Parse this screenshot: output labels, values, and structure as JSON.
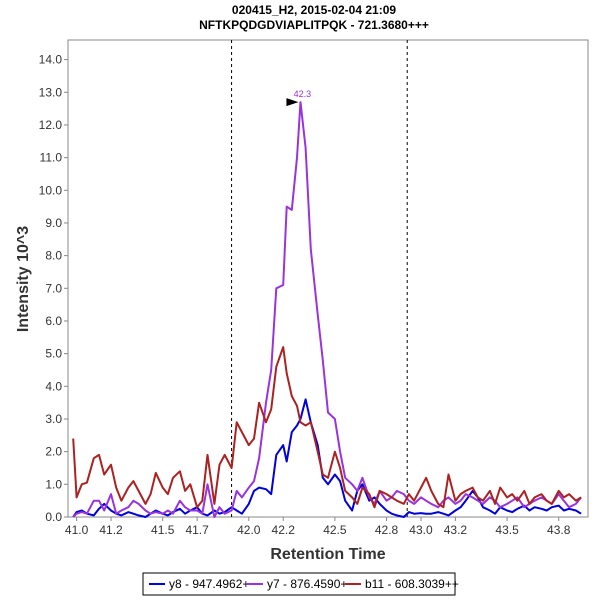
{
  "chart_data": {
    "type": "line",
    "title": "020415_H2, 2015-02-04 21:09",
    "subtitle": "NFTKPQDGDVIAPLITPQK - 721.3680+++",
    "xlabel": "Retention Time",
    "ylabel": "Intensity 10^3",
    "xlim": [
      40.95,
      43.97
    ],
    "ylim": [
      0,
      14.6
    ],
    "x_ticks": [
      41.0,
      41.2,
      41.5,
      41.7,
      42.0,
      42.2,
      42.5,
      42.8,
      43.0,
      43.2,
      43.5,
      43.8
    ],
    "x_tick_labels": [
      "41.0",
      "41.2",
      "41.5",
      "41.7",
      "42.0",
      "42.2",
      "42.5",
      "42.8",
      "43.0",
      "43.2",
      "43.5",
      "43.8"
    ],
    "y_ticks": [
      0,
      1,
      2,
      3,
      4,
      5,
      6,
      7,
      8,
      9,
      10,
      11,
      12,
      13,
      14
    ],
    "y_tick_labels": [
      "0.0",
      "1.0",
      "2.0",
      "3.0",
      "4.0",
      "5.0",
      "6.0",
      "7.0",
      "8.0",
      "9.0",
      "10.0",
      "11.0",
      "12.0",
      "13.0",
      "14.0"
    ],
    "integration_bounds": [
      41.9,
      42.92
    ],
    "peak_annotation": {
      "x": 42.3,
      "y": 12.7,
      "label": "42.3",
      "color": "#9933cc"
    },
    "legend_position": "bottom",
    "series": [
      {
        "name": "y8 - 947.4962+",
        "color": "#0000dd",
        "x": [
          40.98,
          41.0,
          41.03,
          41.06,
          41.1,
          41.13,
          41.16,
          41.2,
          41.23,
          41.26,
          41.3,
          41.33,
          41.36,
          41.4,
          41.43,
          41.46,
          41.5,
          41.53,
          41.56,
          41.6,
          41.63,
          41.66,
          41.7,
          41.73,
          41.76,
          41.8,
          41.83,
          41.86,
          41.9,
          41.93,
          41.96,
          42.0,
          42.03,
          42.06,
          42.1,
          42.13,
          42.16,
          42.2,
          42.22,
          42.25,
          42.28,
          42.3,
          42.33,
          42.36,
          42.4,
          42.43,
          42.46,
          42.5,
          42.53,
          42.56,
          42.6,
          42.63,
          42.66,
          42.7,
          42.73,
          42.76,
          42.8,
          42.83,
          42.86,
          42.9,
          42.93,
          42.96,
          43.0,
          43.03,
          43.06,
          43.1,
          43.13,
          43.16,
          43.2,
          43.23,
          43.26,
          43.3,
          43.33,
          43.36,
          43.4,
          43.43,
          43.46,
          43.5,
          43.53,
          43.56,
          43.6,
          43.63,
          43.66,
          43.7,
          43.73,
          43.76,
          43.8,
          43.83,
          43.86,
          43.9,
          43.93
        ],
        "values": [
          0.0,
          0.15,
          0.2,
          0.1,
          0.05,
          0.25,
          0.4,
          0.2,
          0.1,
          0.05,
          0.15,
          0.1,
          0.05,
          0.0,
          0.1,
          0.2,
          0.1,
          0.05,
          0.15,
          0.25,
          0.1,
          0.2,
          0.3,
          0.1,
          0.05,
          0.2,
          0.1,
          0.15,
          0.3,
          0.2,
          0.1,
          0.4,
          0.8,
          0.9,
          0.85,
          0.7,
          1.9,
          2.2,
          1.7,
          2.6,
          2.8,
          3.0,
          3.6,
          2.9,
          2.2,
          1.2,
          1.0,
          1.3,
          1.1,
          0.5,
          0.2,
          0.8,
          1.0,
          0.5,
          0.6,
          0.4,
          0.2,
          0.1,
          0.05,
          0.0,
          0.15,
          0.1,
          0.12,
          0.1,
          0.1,
          0.15,
          0.1,
          0.05,
          0.2,
          0.3,
          0.5,
          0.8,
          0.6,
          0.3,
          0.2,
          0.1,
          0.3,
          0.2,
          0.15,
          0.25,
          0.35,
          0.2,
          0.3,
          0.25,
          0.2,
          0.3,
          0.35,
          0.2,
          0.25,
          0.2,
          0.1
        ]
      },
      {
        "name": "y7 - 876.4590+",
        "color": "#9933dd",
        "x": [
          40.98,
          41.0,
          41.03,
          41.06,
          41.1,
          41.13,
          41.16,
          41.2,
          41.23,
          41.26,
          41.3,
          41.33,
          41.36,
          41.4,
          41.43,
          41.46,
          41.5,
          41.53,
          41.56,
          41.6,
          41.63,
          41.66,
          41.7,
          41.73,
          41.76,
          41.8,
          41.83,
          41.86,
          41.9,
          41.93,
          41.96,
          42.0,
          42.03,
          42.06,
          42.1,
          42.13,
          42.16,
          42.2,
          42.22,
          42.25,
          42.28,
          42.3,
          42.33,
          42.36,
          42.4,
          42.43,
          42.46,
          42.5,
          42.53,
          42.56,
          42.6,
          42.63,
          42.66,
          42.7,
          42.73,
          42.76,
          42.8,
          42.83,
          42.86,
          42.9,
          42.93,
          42.96,
          43.0,
          43.03,
          43.06,
          43.1,
          43.13,
          43.16,
          43.2,
          43.23,
          43.26,
          43.3,
          43.33,
          43.36,
          43.4,
          43.43,
          43.46,
          43.5,
          43.53,
          43.56,
          43.6,
          43.63,
          43.66,
          43.7,
          43.73,
          43.76,
          43.8,
          43.83,
          43.86,
          43.9,
          43.93
        ],
        "values": [
          0.0,
          0.1,
          0.15,
          0.1,
          0.5,
          0.5,
          0.2,
          0.7,
          0.1,
          0.2,
          0.3,
          0.5,
          0.4,
          0.2,
          0.1,
          0.15,
          0.1,
          0.2,
          0.1,
          0.5,
          0.3,
          0.2,
          0.2,
          0.1,
          1.0,
          0.0,
          0.3,
          0.1,
          0.2,
          0.8,
          0.6,
          0.9,
          1.1,
          1.8,
          3.5,
          4.5,
          7.0,
          7.1,
          9.5,
          9.4,
          11.0,
          12.7,
          11.3,
          8.2,
          6.2,
          4.8,
          3.2,
          3.0,
          2.0,
          1.2,
          1.0,
          0.8,
          1.2,
          0.6,
          0.4,
          0.8,
          0.5,
          0.6,
          0.8,
          0.7,
          0.5,
          0.4,
          0.6,
          0.5,
          0.4,
          0.3,
          0.5,
          0.6,
          0.4,
          0.5,
          0.7,
          0.6,
          0.5,
          0.4,
          0.6,
          0.5,
          0.3,
          0.4,
          0.5,
          0.6,
          0.3,
          0.4,
          0.5,
          0.6,
          0.5,
          0.4,
          0.7,
          0.5,
          0.3,
          0.4,
          0.6
        ]
      },
      {
        "name": "b11 - 608.3039++",
        "color": "#aa2222",
        "x": [
          40.98,
          41.0,
          41.03,
          41.06,
          41.1,
          41.13,
          41.16,
          41.2,
          41.23,
          41.26,
          41.3,
          41.33,
          41.36,
          41.4,
          41.43,
          41.46,
          41.5,
          41.53,
          41.56,
          41.6,
          41.63,
          41.66,
          41.7,
          41.73,
          41.76,
          41.8,
          41.83,
          41.86,
          41.9,
          41.93,
          41.96,
          42.0,
          42.03,
          42.06,
          42.1,
          42.13,
          42.16,
          42.2,
          42.22,
          42.25,
          42.28,
          42.3,
          42.33,
          42.36,
          42.4,
          42.43,
          42.46,
          42.5,
          42.53,
          42.56,
          42.6,
          42.63,
          42.66,
          42.7,
          42.73,
          42.76,
          42.8,
          42.83,
          42.86,
          42.9,
          42.93,
          42.96,
          43.0,
          43.03,
          43.06,
          43.1,
          43.13,
          43.16,
          43.2,
          43.23,
          43.26,
          43.3,
          43.33,
          43.36,
          43.4,
          43.43,
          43.46,
          43.5,
          43.53,
          43.56,
          43.6,
          43.63,
          43.66,
          43.7,
          43.73,
          43.76,
          43.8,
          43.83,
          43.86,
          43.9,
          43.93
        ],
        "values": [
          2.4,
          0.6,
          1.0,
          1.05,
          1.8,
          1.9,
          1.3,
          1.6,
          0.9,
          0.5,
          0.9,
          1.1,
          0.8,
          0.4,
          0.7,
          1.35,
          0.9,
          0.7,
          1.2,
          1.4,
          0.8,
          1.0,
          0.3,
          0.5,
          1.9,
          0.4,
          1.6,
          1.9,
          1.5,
          2.9,
          2.6,
          2.2,
          2.4,
          3.5,
          2.9,
          3.3,
          4.6,
          5.2,
          4.4,
          3.7,
          3.4,
          2.9,
          2.8,
          2.9,
          2.0,
          1.3,
          1.2,
          2.0,
          1.5,
          0.8,
          0.6,
          0.4,
          0.9,
          0.7,
          0.3,
          0.8,
          0.7,
          0.6,
          0.5,
          0.4,
          0.7,
          0.5,
          0.9,
          1.2,
          0.8,
          0.4,
          0.3,
          1.3,
          0.5,
          0.7,
          0.8,
          0.9,
          0.6,
          0.5,
          0.8,
          0.4,
          0.9,
          0.6,
          0.7,
          0.5,
          0.8,
          0.4,
          0.6,
          0.7,
          0.5,
          0.4,
          0.8,
          0.6,
          0.7,
          0.5,
          0.6
        ]
      }
    ]
  }
}
